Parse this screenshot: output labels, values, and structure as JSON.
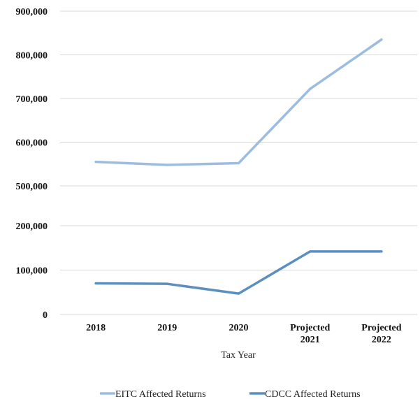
{
  "chart_data": {
    "type": "line",
    "categories": [
      "2018",
      "2019",
      "2020",
      "Projected 2021",
      "Projected 2022"
    ],
    "category_lines": [
      [
        "2018"
      ],
      [
        "2019"
      ],
      [
        "2020"
      ],
      [
        "Projected",
        "2021"
      ],
      [
        "Projected",
        "2022"
      ]
    ],
    "y_tick_labels": [
      "0",
      "100,000",
      "200,000",
      "500,000",
      "600,000",
      "700,000",
      "800,000",
      "900,000"
    ],
    "y_tick_values": [
      0,
      100000,
      200000,
      500000,
      600000,
      700000,
      800000,
      900000
    ],
    "y_axis_break": {
      "from": 200000,
      "to": 500000
    },
    "ylim": [
      0,
      900000
    ],
    "xlabel": "Tax Year",
    "ylabel": "",
    "title": "",
    "grid": true,
    "legend_position": "bottom",
    "series": [
      {
        "name": "EITC Affected Returns",
        "color": "#9dbde0",
        "values": [
          555000,
          548000,
          552000,
          722000,
          835000
        ]
      },
      {
        "name": "CDCC Affected Returns",
        "color": "#5b8fc0",
        "values": [
          70000,
          69000,
          47000,
          142000,
          142000
        ]
      }
    ]
  }
}
